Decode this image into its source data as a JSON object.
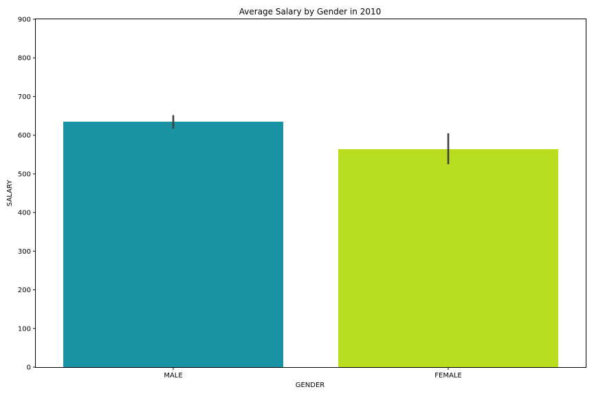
{
  "chart_data": {
    "type": "bar",
    "title": "Average Salary by Gender in 2010",
    "xlabel": "GENDER",
    "ylabel": "SALARY",
    "categories": [
      "MALE",
      "FEMALE"
    ],
    "values": [
      635,
      564
    ],
    "error_bars": [
      {
        "low": 617,
        "high": 652
      },
      {
        "low": 525,
        "high": 605
      }
    ],
    "colors": [
      "#1a93a4",
      "#b9dd1f"
    ],
    "error_color": "#3f3f3f",
    "ylim": [
      0,
      900
    ],
    "yticks": [
      0,
      100,
      200,
      300,
      400,
      500,
      600,
      700,
      800,
      900
    ],
    "grid": false,
    "legend": false
  }
}
